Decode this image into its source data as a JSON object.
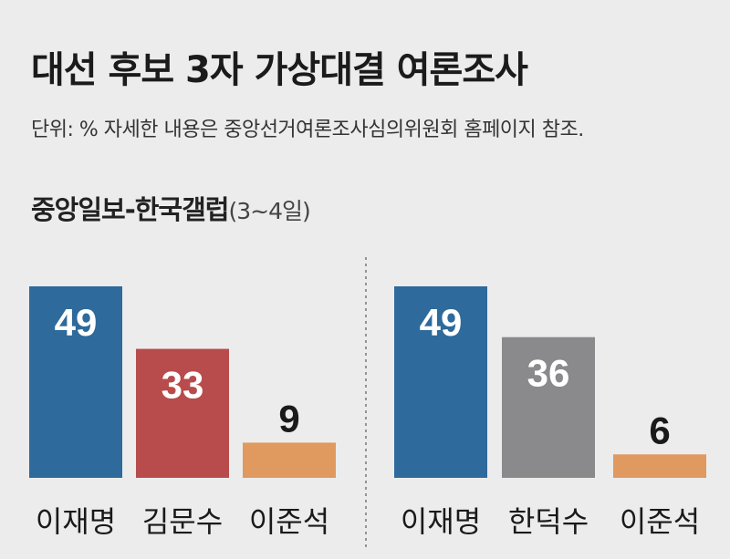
{
  "header": {
    "title": "대선 후보 3자 가상대결 여론조사",
    "subtitle": "단위: %  자세한 내용은 중앙선거여론조사심의위원회 홈페이지 참조.",
    "pollster": "중앙일보-한국갤럽",
    "period": "(3~4일)"
  },
  "chart_data": [
    {
      "type": "bar",
      "categories": [
        "이재명",
        "김문수",
        "이준석"
      ],
      "values": [
        49,
        33,
        9
      ],
      "colors": [
        "#2e6a9b",
        "#b84b4b",
        "#e0995e"
      ],
      "ylim": [
        0,
        49
      ],
      "grid": false
    },
    {
      "type": "bar",
      "categories": [
        "이재명",
        "한덕수",
        "이준석"
      ],
      "values": [
        49,
        36,
        6
      ],
      "colors": [
        "#2e6a9b",
        "#8a8a8c",
        "#e0995e"
      ],
      "ylim": [
        0,
        49
      ],
      "grid": false
    }
  ]
}
